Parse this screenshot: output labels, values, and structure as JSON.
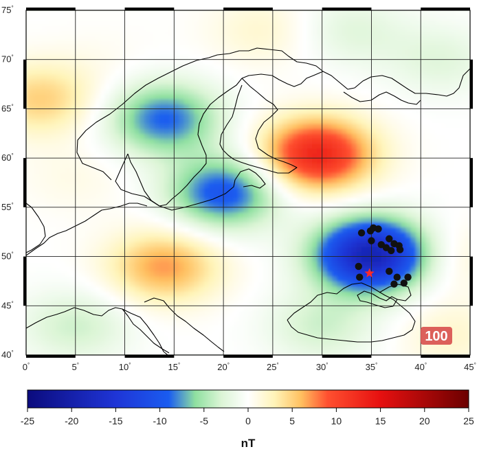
{
  "map": {
    "lon_range": [
      0,
      45
    ],
    "lat_range": [
      40,
      75
    ],
    "lon_ticks": [
      0,
      5,
      10,
      15,
      20,
      25,
      30,
      35,
      40,
      45
    ],
    "lat_ticks": [
      40,
      45,
      50,
      55,
      60,
      65,
      70,
      75
    ],
    "lon_tick_labels": [
      "0",
      "5",
      "10",
      "15",
      "20",
      "25",
      "30",
      "35",
      "40",
      "45"
    ],
    "lat_tick_labels": [
      "40",
      "45",
      "50",
      "55",
      "60",
      "65",
      "70",
      "75"
    ],
    "degree_symbol": "°",
    "grid": true,
    "anomalies": [
      {
        "lon": 29.5,
        "lat": 60.4,
        "value": 13
      },
      {
        "lon": 35.0,
        "lat": 50.2,
        "value": -19
      },
      {
        "lon": 14.0,
        "lat": 64.0,
        "value": -9
      },
      {
        "lon": 20.0,
        "lat": 56.5,
        "value": -10
      },
      {
        "lon": 14.0,
        "lat": 49.0,
        "value": 7
      },
      {
        "lon": 1.5,
        "lat": 66.0,
        "value": 5
      },
      {
        "lon": 33.0,
        "lat": 73.0,
        "value": -2.5
      },
      {
        "lon": 42.0,
        "lat": 70.0,
        "value": -2.5
      },
      {
        "lon": 24.0,
        "lat": 73.0,
        "value": 2
      },
      {
        "lon": 8.0,
        "lat": 70.0,
        "value": 0.5
      },
      {
        "lon": 5.0,
        "lat": 58.0,
        "value": 1
      },
      {
        "lon": 5.0,
        "lat": 43.0,
        "value": -3.5
      },
      {
        "lon": 30.0,
        "lat": 43.0,
        "value": -3.5
      },
      {
        "lon": 43.0,
        "lat": 42.0,
        "value": 2
      },
      {
        "lon": 43.0,
        "lat": 50.0,
        "value": 2
      }
    ],
    "stations": [
      {
        "lon": 34.0,
        "lat": 52.4
      },
      {
        "lon": 34.9,
        "lat": 52.6
      },
      {
        "lon": 35.2,
        "lat": 52.9
      },
      {
        "lon": 35.7,
        "lat": 52.8
      },
      {
        "lon": 35.0,
        "lat": 51.6
      },
      {
        "lon": 36.0,
        "lat": 51.2
      },
      {
        "lon": 36.5,
        "lat": 50.9
      },
      {
        "lon": 36.8,
        "lat": 51.8
      },
      {
        "lon": 37.3,
        "lat": 51.3
      },
      {
        "lon": 37.8,
        "lat": 51.1
      },
      {
        "lon": 37.9,
        "lat": 50.7
      },
      {
        "lon": 37.0,
        "lat": 50.6
      },
      {
        "lon": 33.7,
        "lat": 49.0
      },
      {
        "lon": 33.8,
        "lat": 47.9
      },
      {
        "lon": 36.8,
        "lat": 48.5
      },
      {
        "lon": 37.6,
        "lat": 47.9
      },
      {
        "lon": 38.3,
        "lat": 47.3
      },
      {
        "lon": 38.7,
        "lat": 47.9
      },
      {
        "lon": 37.3,
        "lat": 47.2
      }
    ],
    "epicenter": {
      "lon": 34.8,
      "lat": 48.3
    },
    "colors": {
      "station": "#111111",
      "epicenter": "#ff2a2a",
      "coastline": "#000000",
      "grid": "#222222"
    }
  },
  "colorbar": {
    "min": -25,
    "max": 25,
    "tick_labels": [
      "-25",
      "-20",
      "-15",
      "-10",
      "-5",
      "0",
      "5",
      "10",
      "15",
      "20",
      "25"
    ],
    "unit": "nT",
    "stops": [
      {
        "v": -25,
        "c": "#0b0b7d"
      },
      {
        "v": -15,
        "c": "#1f35d6"
      },
      {
        "v": -9,
        "c": "#1a5cf0"
      },
      {
        "v": -6,
        "c": "#8fe0a0"
      },
      {
        "v": -3,
        "c": "#dcf5d6"
      },
      {
        "v": 0,
        "c": "#ffffff"
      },
      {
        "v": 3,
        "c": "#fff4b8"
      },
      {
        "v": 6,
        "c": "#ffc060"
      },
      {
        "v": 9,
        "c": "#ff5030"
      },
      {
        "v": 15,
        "c": "#e61010"
      },
      {
        "v": 25,
        "c": "#6b0000"
      }
    ]
  },
  "watermark": {
    "text": "100"
  }
}
